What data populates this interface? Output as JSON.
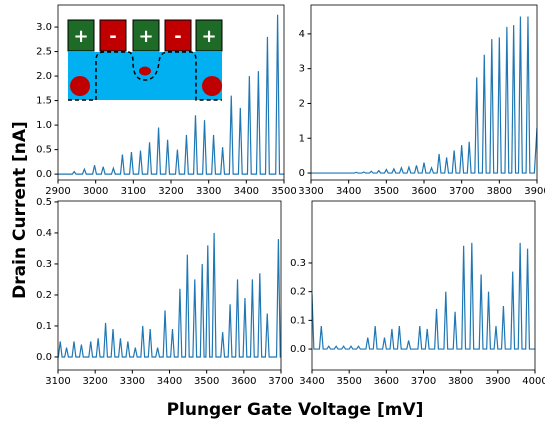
{
  "ylabel": "Drain Current [nA]",
  "xlabel": "Plunger Gate Voltage [mV]",
  "chart_data": [
    {
      "type": "line",
      "color": "#1f77b4",
      "annotations": [
        "+",
        "-",
        "+",
        "-",
        "+"
      ],
      "xlim": [
        2900,
        3500
      ],
      "xticks": [
        2900,
        3000,
        3100,
        3200,
        3300,
        3400,
        3500
      ],
      "ylim": [
        -0.12,
        3.45
      ],
      "yticks": [
        {
          "value": 0,
          "label": "0.0"
        },
        0.5,
        {
          "value": 1,
          "label": "1.0"
        },
        1.5,
        {
          "value": 2,
          "label": "2.0"
        },
        2.5,
        {
          "value": 3,
          "label": "3.0"
        }
      ],
      "x": [
        2900,
        2938,
        2943,
        2948,
        2965,
        2970,
        2975,
        2992,
        2997,
        3002,
        3015,
        3020,
        3025,
        3042,
        3047,
        3052,
        3066,
        3071,
        3076,
        3090,
        3095,
        3100,
        3114,
        3119,
        3124,
        3138,
        3143,
        3148,
        3162,
        3167,
        3172,
        3186,
        3191,
        3196,
        3212,
        3217,
        3222,
        3236,
        3241,
        3246,
        3260,
        3265,
        3270,
        3284,
        3289,
        3294,
        3308,
        3313,
        3318,
        3332,
        3337,
        3342,
        3355,
        3360,
        3365,
        3379,
        3384,
        3389,
        3403,
        3408,
        3413,
        3427,
        3432,
        3437,
        3451,
        3456,
        3461,
        3478,
        3483,
        3488,
        3500
      ],
      "values": [
        0,
        0,
        0.05,
        0,
        0,
        0.1,
        0,
        0,
        0.18,
        0,
        0,
        0.15,
        0,
        0,
        0.12,
        0,
        0,
        0.4,
        0,
        0,
        0.45,
        0,
        0,
        0.48,
        0,
        0,
        0.65,
        0,
        0,
        0.95,
        0,
        0,
        0.7,
        0,
        0,
        0.5,
        0,
        0,
        0.8,
        0,
        0,
        1.2,
        0,
        0,
        1.1,
        0,
        0,
        0.8,
        0,
        0,
        0.55,
        0,
        0,
        1.6,
        0,
        0,
        1.35,
        0,
        0,
        2.0,
        0,
        0,
        2.1,
        0,
        0,
        2.8,
        0,
        0,
        3.25,
        0,
        0
      ]
    },
    {
      "type": "line",
      "color": "#1f77b4",
      "xlim": [
        3300,
        3900
      ],
      "xticks": [
        3300,
        3400,
        3500,
        3600,
        3700,
        3800,
        3900
      ],
      "ylim": [
        -0.2,
        4.83
      ],
      "yticks": [
        0,
        1,
        2,
        3,
        4
      ],
      "x": [
        3300,
        3415,
        3420,
        3425,
        3435,
        3440,
        3445,
        3455,
        3460,
        3465,
        3475,
        3480,
        3485,
        3495,
        3500,
        3505,
        3515,
        3520,
        3525,
        3535,
        3540,
        3545,
        3555,
        3560,
        3565,
        3575,
        3580,
        3585,
        3595,
        3600,
        3605,
        3615,
        3620,
        3625,
        3635,
        3640,
        3645,
        3655,
        3660,
        3665,
        3675,
        3680,
        3685,
        3695,
        3700,
        3705,
        3715,
        3720,
        3725,
        3735,
        3740,
        3745,
        3755,
        3760,
        3765,
        3775,
        3780,
        3785,
        3795,
        3800,
        3805,
        3815,
        3820,
        3825,
        3833,
        3838,
        3843,
        3851,
        3856,
        3861,
        3871,
        3876,
        3881,
        3893,
        3900
      ],
      "values": [
        0,
        0,
        0.02,
        0,
        0,
        0.03,
        0,
        0,
        0.05,
        0,
        0,
        0.07,
        0,
        0,
        0.1,
        0,
        0,
        0.12,
        0,
        0,
        0.15,
        0,
        0,
        0.17,
        0,
        0,
        0.22,
        0,
        0,
        0.3,
        0,
        0,
        0.15,
        0,
        0,
        0.55,
        0,
        0,
        0.45,
        0,
        0,
        0.65,
        0,
        0,
        0.8,
        0,
        0,
        0.9,
        0,
        0,
        2.75,
        0,
        0,
        3.4,
        0,
        0,
        3.85,
        0,
        0,
        3.9,
        0,
        0,
        4.2,
        0,
        0,
        4.25,
        0,
        0,
        4.5,
        0,
        0,
        4.5,
        0,
        0,
        1.3
      ]
    },
    {
      "type": "line",
      "color": "#1f77b4",
      "xlim": [
        3100,
        3700
      ],
      "xticks": [
        3100,
        3200,
        3300,
        3400,
        3500,
        3600,
        3700
      ],
      "ylim": [
        -0.042,
        0.503
      ],
      "yticks": [
        {
          "value": 0,
          "label": "0.0"
        },
        0.1,
        0.2,
        0.3,
        0.4,
        0.5
      ],
      "x": [
        3100,
        3101,
        3106,
        3111,
        3118,
        3123,
        3128,
        3138,
        3143,
        3148,
        3158,
        3163,
        3168,
        3183,
        3188,
        3193,
        3203,
        3208,
        3213,
        3223,
        3228,
        3233,
        3243,
        3248,
        3253,
        3263,
        3268,
        3273,
        3283,
        3288,
        3293,
        3303,
        3308,
        3313,
        3323,
        3328,
        3333,
        3343,
        3348,
        3353,
        3363,
        3368,
        3373,
        3383,
        3388,
        3393,
        3403,
        3408,
        3413,
        3423,
        3428,
        3433,
        3443,
        3448,
        3453,
        3463,
        3468,
        3473,
        3483,
        3488,
        3493,
        3498,
        3503,
        3508,
        3515,
        3520,
        3525,
        3538,
        3543,
        3548,
        3558,
        3563,
        3568,
        3578,
        3583,
        3588,
        3598,
        3603,
        3608,
        3618,
        3623,
        3628,
        3638,
        3643,
        3648,
        3658,
        3663,
        3668,
        3688,
        3693,
        3698,
        3700
      ],
      "values": [
        0,
        0,
        0.05,
        0,
        0,
        0.03,
        0,
        0,
        0.05,
        0,
        0,
        0.04,
        0,
        0,
        0.05,
        0,
        0,
        0.06,
        0,
        0,
        0.11,
        0,
        0,
        0.09,
        0,
        0,
        0.06,
        0,
        0,
        0.05,
        0,
        0,
        0.03,
        0,
        0,
        0.1,
        0,
        0,
        0.09,
        0,
        0,
        0.03,
        0,
        0,
        0.15,
        0,
        0,
        0.09,
        0,
        0,
        0.22,
        0,
        0,
        0.33,
        0,
        0,
        0.25,
        0,
        0,
        0.3,
        0,
        0,
        0.36,
        0,
        0,
        0.4,
        0,
        0,
        0.08,
        0,
        0,
        0.17,
        0,
        0,
        0.25,
        0,
        0,
        0.19,
        0,
        0,
        0.25,
        0,
        0,
        0.27,
        0,
        0,
        0.14,
        0,
        0,
        0.38,
        0,
        0
      ]
    },
    {
      "type": "line",
      "color": "#1f77b4",
      "xlim": [
        3400,
        4000
      ],
      "xticks": [
        3400,
        3500,
        3600,
        3700,
        3800,
        3900,
        4000
      ],
      "ylim": [
        -0.073,
        0.516
      ],
      "yticks": [
        {
          "value": 0,
          "label": "0.0"
        },
        0.1,
        0.2,
        0.3
      ],
      "x": [
        3400,
        3405,
        3420,
        3425,
        3430,
        3440,
        3445,
        3450,
        3460,
        3465,
        3470,
        3480,
        3485,
        3490,
        3500,
        3505,
        3510,
        3520,
        3525,
        3530,
        3545,
        3550,
        3555,
        3565,
        3570,
        3575,
        3590,
        3595,
        3600,
        3610,
        3615,
        3620,
        3630,
        3635,
        3640,
        3655,
        3660,
        3665,
        3685,
        3690,
        3695,
        3705,
        3710,
        3715,
        3730,
        3735,
        3740,
        3755,
        3760,
        3765,
        3780,
        3785,
        3790,
        3803,
        3808,
        3813,
        3825,
        3830,
        3835,
        3850,
        3855,
        3860,
        3870,
        3875,
        3880,
        3890,
        3895,
        3900,
        3910,
        3915,
        3920,
        3935,
        3940,
        3945,
        3955,
        3960,
        3965,
        3975,
        3980,
        3985,
        4000
      ],
      "values": [
        0.19,
        0,
        0,
        0.08,
        0,
        0,
        0.01,
        0,
        0,
        0.01,
        0,
        0,
        0.01,
        0,
        0,
        0.01,
        0,
        0,
        0.01,
        0,
        0,
        0.04,
        0,
        0,
        0.08,
        0,
        0,
        0.04,
        0,
        0,
        0.07,
        0,
        0,
        0.08,
        0,
        0,
        0.03,
        0,
        0,
        0.08,
        0,
        0,
        0.07,
        0,
        0,
        0.14,
        0,
        0,
        0.2,
        0,
        0,
        0.13,
        0,
        0,
        0.36,
        0,
        0,
        0.37,
        0,
        0,
        0.26,
        0,
        0,
        0.2,
        0,
        0,
        0.08,
        0,
        0,
        0.15,
        0,
        0,
        0.27,
        0,
        0,
        0.37,
        0,
        0,
        0.35,
        0,
        0
      ]
    }
  ]
}
